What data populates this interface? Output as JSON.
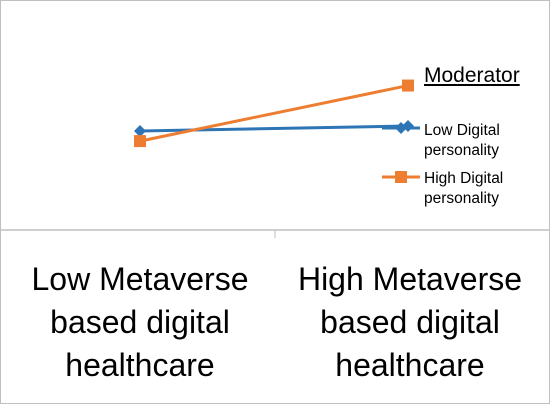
{
  "chart_data": {
    "type": "line",
    "categories": [
      "Low Metaverse based digital healthcare",
      "High Metaverse based digital healthcare"
    ],
    "series": [
      {
        "name": "Low Digital personality",
        "values": [
          2.0,
          2.05
        ],
        "color": "#2e75b6",
        "marker": "diamond"
      },
      {
        "name": "High Digital personality",
        "values": [
          1.9,
          2.45
        ],
        "color": "#ed7d31",
        "marker": "square"
      }
    ],
    "legend_title": "Moderator",
    "legend_position": "right",
    "ylim": [
      1.0,
      3.0
    ],
    "grid": false
  }
}
